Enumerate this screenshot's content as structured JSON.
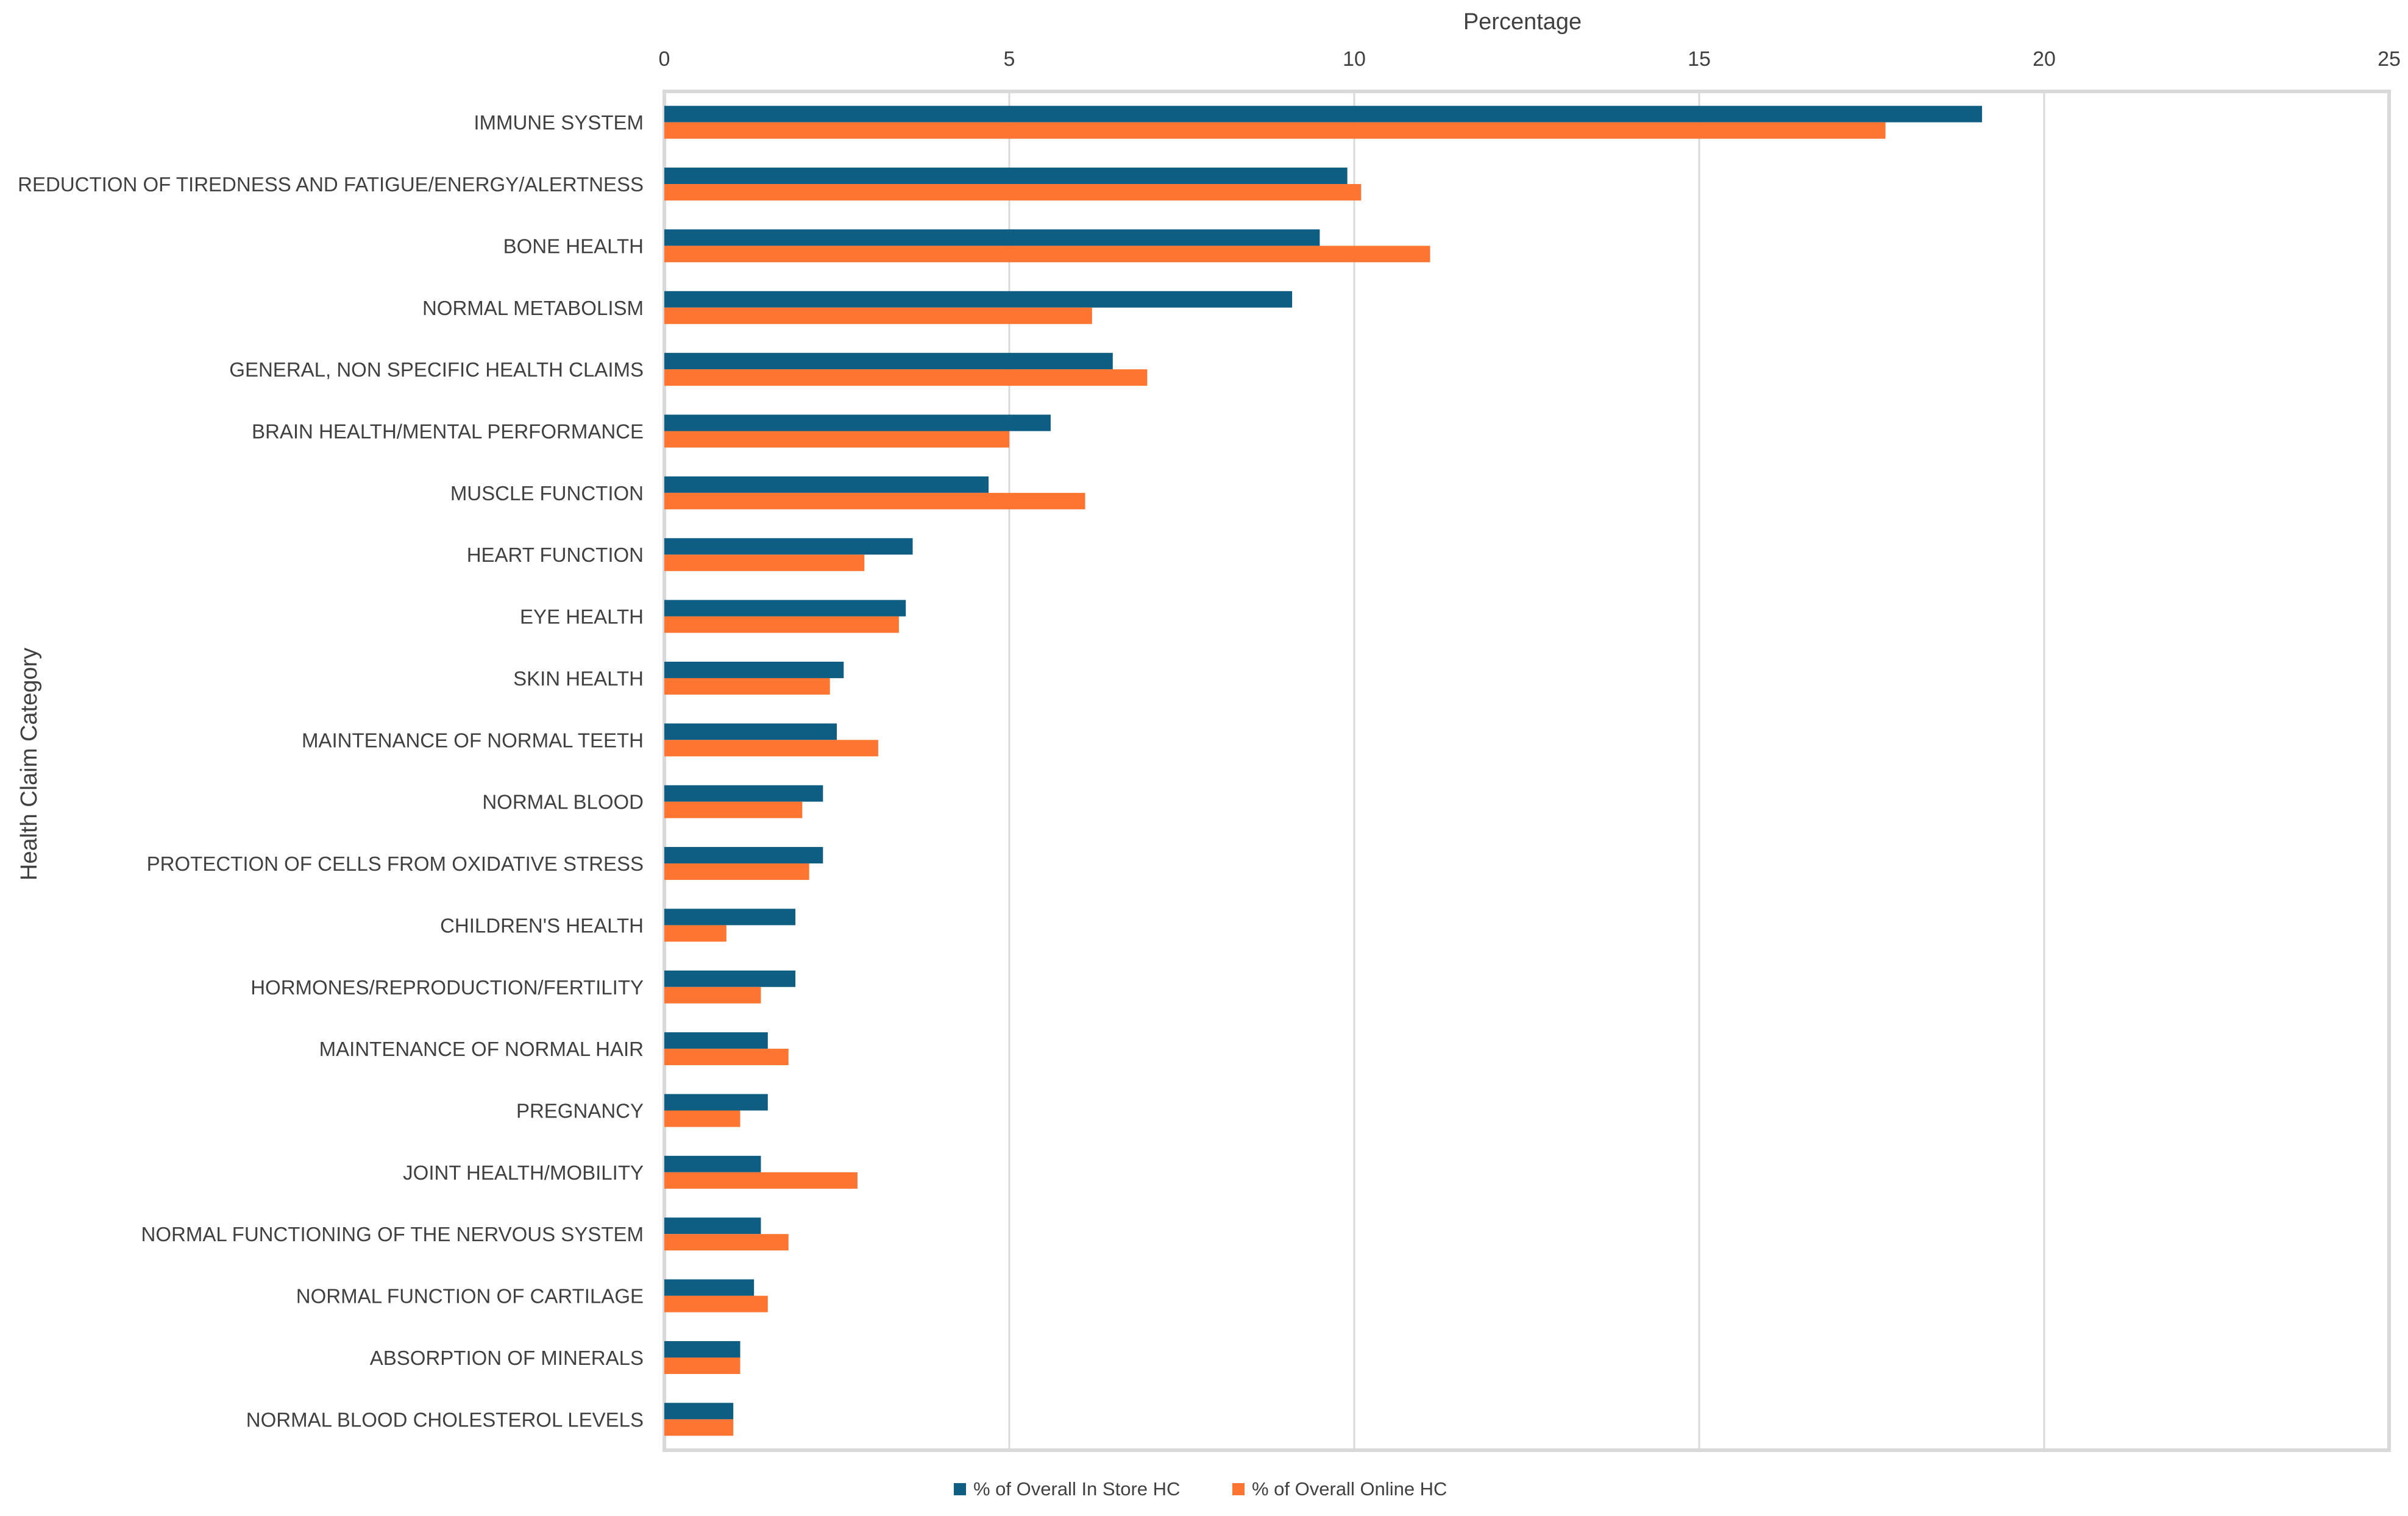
{
  "chart_data": {
    "type": "bar",
    "orientation": "horizontal",
    "title": "",
    "xlabel": "Percentage",
    "ylabel": "Health Claim Category",
    "xlim": [
      0,
      25
    ],
    "x_ticks": [
      0,
      5,
      10,
      15,
      20,
      25
    ],
    "x_axis_position": "top",
    "grid": true,
    "legend_position": "bottom",
    "categories": [
      "IMMUNE SYSTEM",
      "REDUCTION OF TIREDNESS AND FATIGUE/ENERGY/ALERTNESS",
      "BONE HEALTH",
      "NORMAL METABOLISM",
      "GENERAL, NON SPECIFIC HEALTH CLAIMS",
      "BRAIN HEALTH/MENTAL PERFORMANCE",
      "MUSCLE FUNCTION",
      "HEART FUNCTION",
      "EYE HEALTH",
      "SKIN HEALTH",
      "MAINTENANCE OF NORMAL TEETH",
      "NORMAL BLOOD",
      "PROTECTION OF CELLS FROM OXIDATIVE STRESS",
      "CHILDREN'S HEALTH",
      "HORMONES/REPRODUCTION/FERTILITY",
      "MAINTENANCE OF NORMAL HAIR",
      "PREGNANCY",
      "JOINT HEALTH/MOBILITY",
      "NORMAL FUNCTIONING OF THE NERVOUS SYSTEM",
      "NORMAL FUNCTION OF CARTILAGE",
      "ABSORPTION OF MINERALS",
      "NORMAL BLOOD CHOLESTEROL LEVELS"
    ],
    "series": [
      {
        "name": "% of Overall In Store HC",
        "color": "#0e5e84",
        "values": [
          19.1,
          9.9,
          9.5,
          9.1,
          6.5,
          5.6,
          4.7,
          3.6,
          3.5,
          2.6,
          2.5,
          2.3,
          2.3,
          1.9,
          1.9,
          1.5,
          1.5,
          1.4,
          1.4,
          1.3,
          1.1,
          1.0
        ]
      },
      {
        "name": "% of Overall Online HC",
        "color": "#fd7530",
        "values": [
          17.7,
          10.1,
          11.1,
          6.2,
          7.0,
          5.0,
          6.1,
          2.9,
          3.4,
          2.4,
          3.1,
          2.0,
          2.1,
          0.9,
          1.4,
          1.8,
          1.1,
          2.8,
          1.8,
          1.5,
          1.1,
          1.0
        ]
      }
    ]
  }
}
